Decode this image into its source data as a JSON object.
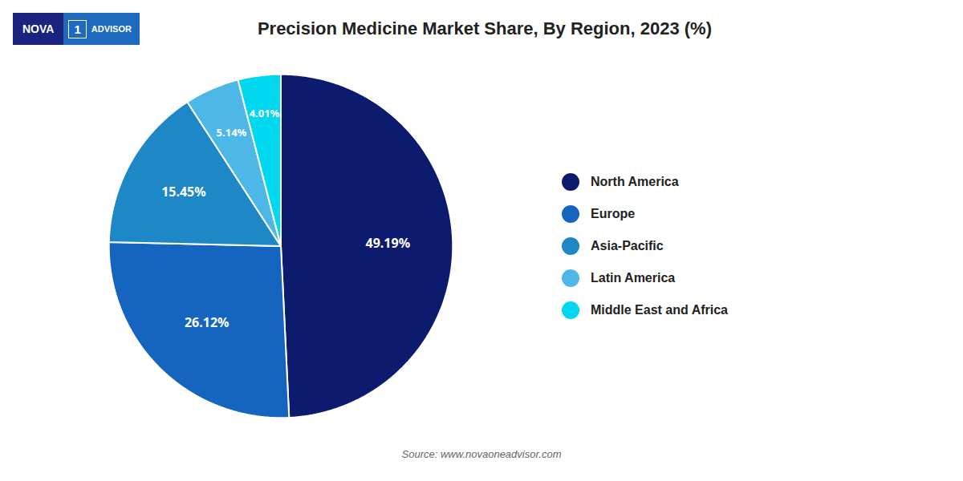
{
  "chart_data": {
    "type": "pie",
    "title": "Precision Medicine Market Share, By Region, 2023 (%)",
    "caption": "Source: www.novaoneadvisor.com",
    "categories": [
      "North America",
      "Europe",
      "Asia-Pacific",
      "Latin America",
      "Middle East and Africa"
    ],
    "values": [
      49.19,
      26.12,
      15.45,
      5.14,
      4.01
    ],
    "value_labels": [
      "49.19%",
      "26.12%",
      "15.45%",
      "5.14%",
      "4.01%"
    ],
    "colors": [
      "#0d1b6e",
      "#1565c0",
      "#1e88c7",
      "#4db8e8",
      "#00d8f0"
    ],
    "data_labels": true,
    "legend": "right",
    "annotations": [
      {
        "text": "NOVA"
      },
      {
        "text": "1"
      },
      {
        "text": "ADVISOR"
      }
    ]
  }
}
